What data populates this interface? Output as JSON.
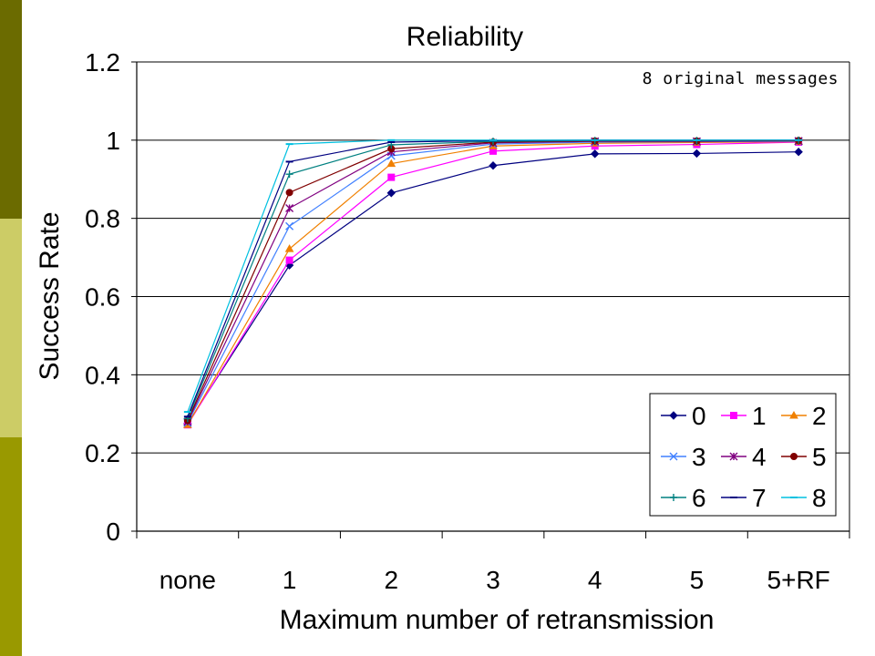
{
  "slide": {
    "sidebar_colors": [
      "#6b6b00",
      "#cccc66",
      "#999900"
    ]
  },
  "chart_data": {
    "type": "line",
    "title": "Reliability",
    "xlabel": "Maximum number of retransmission",
    "ylabel": "Success Rate",
    "annotation": "8 original messages",
    "categories": [
      "none",
      "1",
      "2",
      "3",
      "4",
      "5",
      "5+RF"
    ],
    "ylim": [
      0,
      1.2
    ],
    "yticks": [
      "0",
      "0.2",
      "0.4",
      "0.6",
      "0.8",
      "1",
      "1.2"
    ],
    "grid": "horizontal",
    "legend_position": "bottom-right",
    "series": [
      {
        "name": "0",
        "color": "#000080",
        "marker": "diamond",
        "values": [
          0.275,
          0.68,
          0.865,
          0.935,
          0.965,
          0.966,
          0.97
        ]
      },
      {
        "name": "1",
        "color": "#ff00ff",
        "marker": "square",
        "values": [
          0.272,
          0.693,
          0.905,
          0.972,
          0.985,
          0.989,
          0.995
        ]
      },
      {
        "name": "2",
        "color": "#f08000",
        "marker": "triangle",
        "values": [
          0.272,
          0.722,
          0.94,
          0.985,
          0.992,
          0.994,
          0.996
        ]
      },
      {
        "name": "3",
        "color": "#4080ff",
        "marker": "x",
        "values": [
          0.277,
          0.78,
          0.96,
          0.99,
          0.995,
          0.996,
          0.997
        ]
      },
      {
        "name": "4",
        "color": "#800080",
        "marker": "star",
        "values": [
          0.28,
          0.826,
          0.97,
          0.993,
          0.997,
          0.997,
          0.998
        ]
      },
      {
        "name": "5",
        "color": "#800000",
        "marker": "circle",
        "values": [
          0.283,
          0.866,
          0.978,
          0.995,
          0.998,
          0.998,
          0.999
        ]
      },
      {
        "name": "6",
        "color": "#008080",
        "marker": "plus",
        "values": [
          0.288,
          0.913,
          0.988,
          0.997,
          0.999,
          0.999,
          1.0
        ]
      },
      {
        "name": "7",
        "color": "#000080",
        "marker": "dash",
        "values": [
          0.293,
          0.945,
          0.995,
          0.999,
          1.0,
          1.0,
          1.0
        ]
      },
      {
        "name": "8",
        "color": "#00c0e0",
        "marker": "dash",
        "values": [
          0.305,
          0.99,
          1.0,
          1.0,
          1.0,
          1.0,
          1.0
        ]
      }
    ]
  }
}
